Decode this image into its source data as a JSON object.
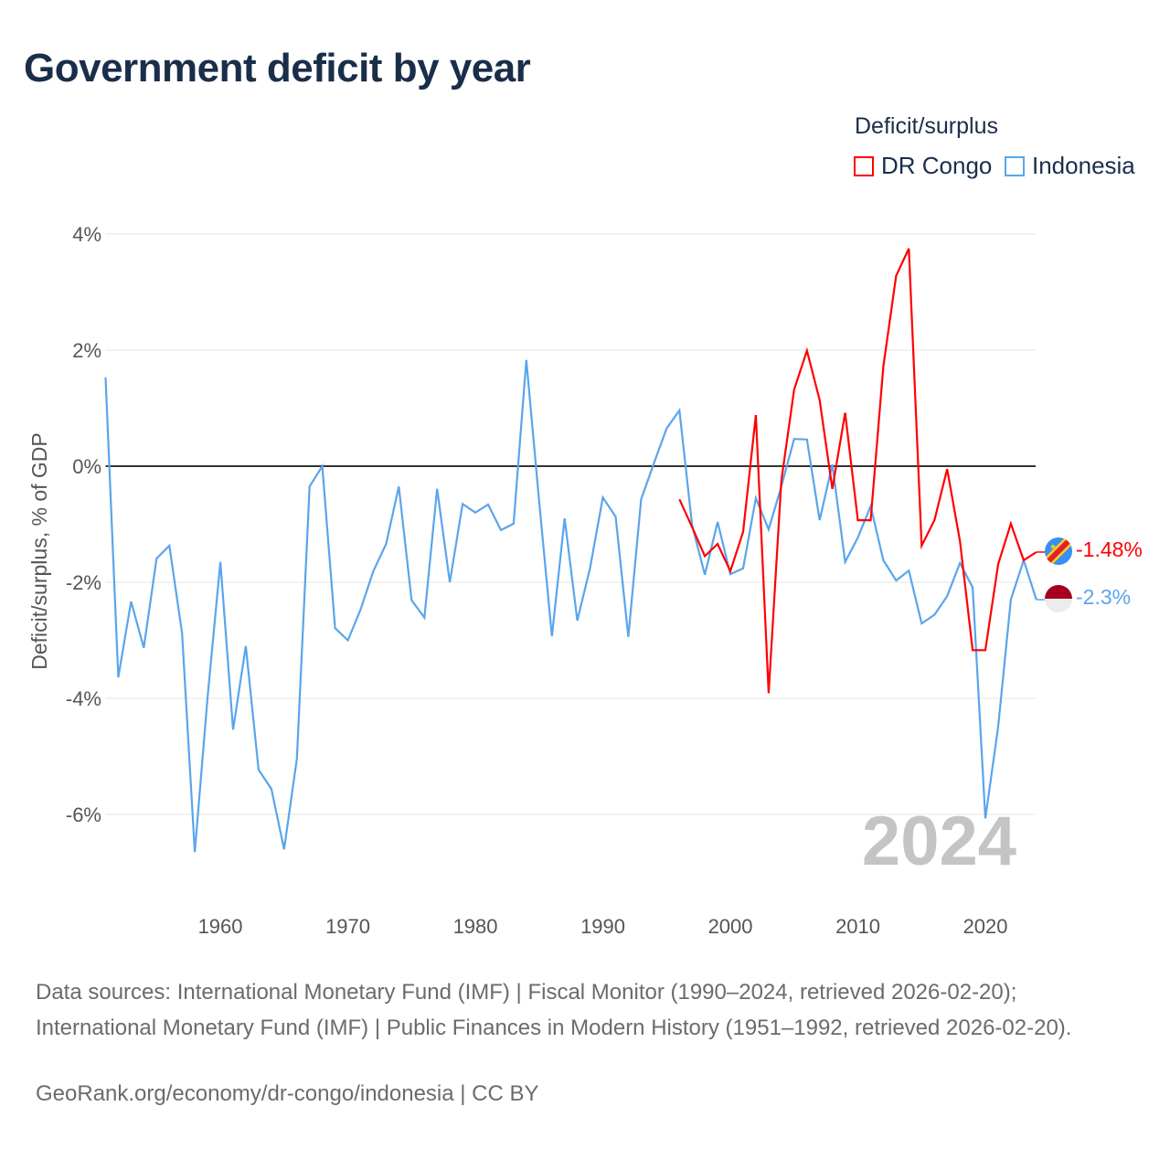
{
  "title": "Government deficit by year",
  "legend": {
    "title": "Deficit/surplus",
    "items": [
      {
        "name": "DR Congo",
        "color": "#ff0000"
      },
      {
        "name": "Indonesia",
        "color": "#5aa5ec"
      }
    ]
  },
  "year_watermark": "2024",
  "end_labels": {
    "drc": "-1.48%",
    "indonesia": "-2.3%"
  },
  "footer": {
    "sources": "Data sources: International Monetary Fund (IMF) | Fiscal Monitor (1990–2024, retrieved 2026-02-20); International Monetary Fund (IMF) | Public Finances in Modern History (1951–1992, retrieved 2026-02-20).",
    "credit": "GeoRank.org/economy/dr-congo/indonesia | CC BY"
  },
  "chart_data": {
    "type": "line",
    "title": "Government deficit by year",
    "xlabel": "",
    "ylabel": "Deficit/surplus, % of GDP",
    "xlim": [
      1951,
      2024
    ],
    "ylim": [
      -7.2,
      4.4
    ],
    "yticks": [
      4,
      2,
      0,
      -2,
      -4,
      -6
    ],
    "ytick_labels": [
      "4%",
      "2%",
      "0%",
      "-2%",
      "-4%",
      "-6%"
    ],
    "xticks": [
      1960,
      1970,
      1980,
      1990,
      2000,
      2010,
      2020
    ],
    "xtick_labels": [
      "1960",
      "1970",
      "1980",
      "1990",
      "2000",
      "2010",
      "2020"
    ],
    "grid": true,
    "legend_position": "top-right",
    "series": [
      {
        "name": "DR Congo",
        "color": "#ff0000",
        "start": 1996,
        "values": [
          -0.57,
          -1.05,
          -1.55,
          -1.34,
          -1.81,
          -1.13,
          0.88,
          -3.91,
          -0.25,
          1.32,
          1.99,
          1.14,
          -0.39,
          0.92,
          -0.93,
          -0.93,
          1.72,
          3.28,
          3.75,
          -1.37,
          -0.93,
          -0.05,
          -1.29,
          -3.17,
          -3.17,
          -1.69,
          -0.99,
          -1.62,
          -1.48
        ]
      },
      {
        "name": "Indonesia",
        "color": "#5aa5ec",
        "start": 1951,
        "values": [
          1.53,
          -3.64,
          -2.33,
          -3.13,
          -1.59,
          -1.37,
          -2.88,
          -6.65,
          -3.98,
          -1.65,
          -4.54,
          -3.1,
          -5.23,
          -5.56,
          -6.6,
          -5.04,
          -0.35,
          0.0,
          -2.79,
          -3.0,
          -2.47,
          -1.81,
          -1.34,
          -0.35,
          -2.31,
          -2.61,
          -0.39,
          -2.0,
          -0.65,
          -0.8,
          -0.66,
          -1.1,
          -0.99,
          1.83,
          -0.6,
          -2.93,
          -0.9,
          -2.66,
          -1.75,
          -0.54,
          -0.87,
          -2.94,
          -0.57,
          0.05,
          0.65,
          0.96,
          -1.02,
          -1.87,
          -0.96,
          -1.86,
          -1.76,
          -0.55,
          -1.09,
          -0.35,
          0.47,
          0.46,
          -0.93,
          0.03,
          -1.65,
          -1.23,
          -0.69,
          -1.62,
          -1.97,
          -1.8,
          -2.71,
          -2.56,
          -2.24,
          -1.67,
          -2.09,
          -6.07,
          -4.49,
          -2.3,
          -1.62,
          -2.3
        ]
      }
    ]
  }
}
